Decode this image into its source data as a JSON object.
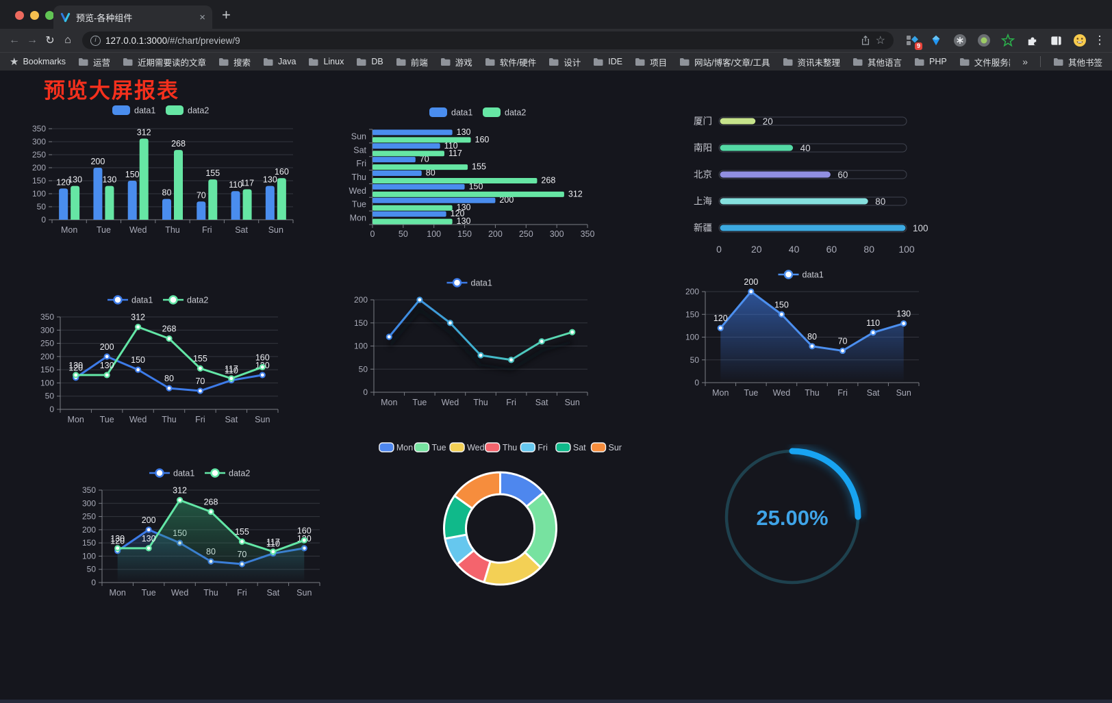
{
  "browser": {
    "tab": {
      "title": "预览-各种组件",
      "close": "×"
    },
    "new_tab_button": "+",
    "nav": {
      "back": "←",
      "forward": "→",
      "reload": "↻",
      "home": "⌂"
    },
    "omnibox": {
      "info": "i",
      "url_host": "127.0.0.1:3000",
      "url_path": "/#/chart/preview/9"
    },
    "extensions_badge": "9",
    "menu": "⋮",
    "bookmarks_label": "Bookmarks",
    "bookmark_folders": [
      "运营",
      "近期需要读的文章",
      "搜索",
      "Java",
      "Linux",
      "DB",
      "前端",
      "游戏",
      "软件/硬件",
      "设计",
      "IDE",
      "项目",
      "网站/博客/文章/工具",
      "资讯未整理",
      "其他语言",
      "PHP",
      "文件服务器"
    ],
    "bookmarks_overflow": "»",
    "other_bookmarks": "其他书签"
  },
  "page": {
    "title": "预览大屏报表",
    "title_color": "#f5301d"
  },
  "chart_data": [
    {
      "id": "grouped-bar",
      "type": "bar",
      "categories": [
        "Mon",
        "Tue",
        "Wed",
        "Thu",
        "Fri",
        "Sat",
        "Sun"
      ],
      "ylim": [
        0,
        350
      ],
      "ystep": 50,
      "legend_position": "top",
      "grid": true,
      "series": [
        {
          "name": "data1",
          "color": "#4A8DEE",
          "values": [
            120,
            200,
            150,
            80,
            70,
            110,
            130
          ]
        },
        {
          "name": "data2",
          "color": "#66E6A4",
          "values": [
            130,
            130,
            312,
            268,
            155,
            117,
            160
          ]
        }
      ]
    },
    {
      "id": "horizontal-bar",
      "type": "hbar",
      "categories": [
        "Mon",
        "Tue",
        "Wed",
        "Thu",
        "Fri",
        "Sat",
        "Sun"
      ],
      "xlim": [
        0,
        350
      ],
      "xstep": 50,
      "legend_position": "top",
      "series": [
        {
          "name": "data1",
          "color": "#4A8DEE",
          "values": [
            120,
            200,
            150,
            80,
            70,
            110,
            130
          ]
        },
        {
          "name": "data2",
          "color": "#66E6A4",
          "values": [
            130,
            130,
            312,
            268,
            155,
            117,
            160
          ]
        }
      ]
    },
    {
      "id": "capsule-progress",
      "type": "capsule",
      "xlim": [
        0,
        100
      ],
      "ticks": [
        0,
        20,
        40,
        60,
        80,
        100
      ],
      "items": [
        {
          "label": "厦门",
          "value": 20,
          "color": "#C6E38B"
        },
        {
          "label": "南阳",
          "value": 40,
          "color": "#54D9A5"
        },
        {
          "label": "北京",
          "value": 60,
          "color": "#918FE2"
        },
        {
          "label": "上海",
          "value": 80,
          "color": "#85E0DE"
        },
        {
          "label": "新疆",
          "value": 100,
          "color": "#3CA9E0"
        }
      ]
    },
    {
      "id": "two-line",
      "type": "line",
      "categories": [
        "Mon",
        "Tue",
        "Wed",
        "Thu",
        "Fri",
        "Sat",
        "Sun"
      ],
      "ylim": [
        0,
        350
      ],
      "ystep": 50,
      "legend_position": "top",
      "grid": true,
      "series": [
        {
          "name": "data1",
          "color": "#3D7BE8",
          "values": [
            120,
            200,
            150,
            80,
            70,
            110,
            130
          ],
          "labels": true
        },
        {
          "name": "data2",
          "color": "#63E6A6",
          "values": [
            130,
            130,
            312,
            268,
            155,
            117,
            160
          ],
          "labels": true
        }
      ]
    },
    {
      "id": "gradient-line",
      "type": "line",
      "shadow": true,
      "categories": [
        "Mon",
        "Tue",
        "Wed",
        "Thu",
        "Fri",
        "Sat",
        "Sun"
      ],
      "ylim": [
        0,
        200
      ],
      "ystep": 50,
      "legend_position": "top",
      "grid": true,
      "series": [
        {
          "name": "data1",
          "gradient": [
            "#3D7BE8",
            "#3FB3CD",
            "#63E6A6"
          ],
          "values": [
            120,
            200,
            150,
            80,
            70,
            110,
            130
          ],
          "labels": false
        }
      ]
    },
    {
      "id": "area-line",
      "type": "line",
      "categories": [
        "Mon",
        "Tue",
        "Wed",
        "Thu",
        "Fri",
        "Sat",
        "Sun"
      ],
      "ylim": [
        0,
        200
      ],
      "ystep": 50,
      "legend_position": "top",
      "grid": true,
      "series": [
        {
          "name": "data1",
          "color": "#4C8FEF",
          "values": [
            120,
            200,
            150,
            80,
            70,
            110,
            130
          ],
          "labels": true,
          "areaColor": "#3D7BE8",
          "areaOpacity": 0.6
        }
      ]
    },
    {
      "id": "two-area",
      "type": "line",
      "categories": [
        "Mon",
        "Tue",
        "Wed",
        "Thu",
        "Fri",
        "Sat",
        "Sun"
      ],
      "ylim": [
        0,
        350
      ],
      "ystep": 50,
      "legend_position": "top",
      "grid": true,
      "series": [
        {
          "name": "data1",
          "color": "#3D7BE8",
          "values": [
            120,
            200,
            150,
            80,
            70,
            110,
            130
          ],
          "labels": true,
          "areaColor": "#2F63B0",
          "areaOpacity": 0.55
        },
        {
          "name": "data2",
          "color": "#63E6A6",
          "values": [
            130,
            130,
            312,
            268,
            155,
            117,
            160
          ],
          "labels": true,
          "areaColor": "#2E8F63",
          "areaOpacity": 0.6
        }
      ]
    },
    {
      "id": "donut",
      "type": "pie",
      "legend_position": "top",
      "categories": [
        "Mon",
        "Tue",
        "Wed",
        "Thu",
        "Fri",
        "Sat",
        "Sun"
      ],
      "values": [
        120,
        200,
        150,
        80,
        70,
        110,
        130
      ],
      "colors": [
        "#4E87EE",
        "#77E2A0",
        "#F3D055",
        "#F4646D",
        "#66C7EE",
        "#10B98A",
        "#F68D3D"
      ]
    },
    {
      "id": "progress-ring",
      "type": "gauge",
      "value": 25,
      "value_label": "25.00%",
      "color": "#18A4F2",
      "track_color": "#1E414E",
      "text_color": "#3FA4E8"
    }
  ]
}
